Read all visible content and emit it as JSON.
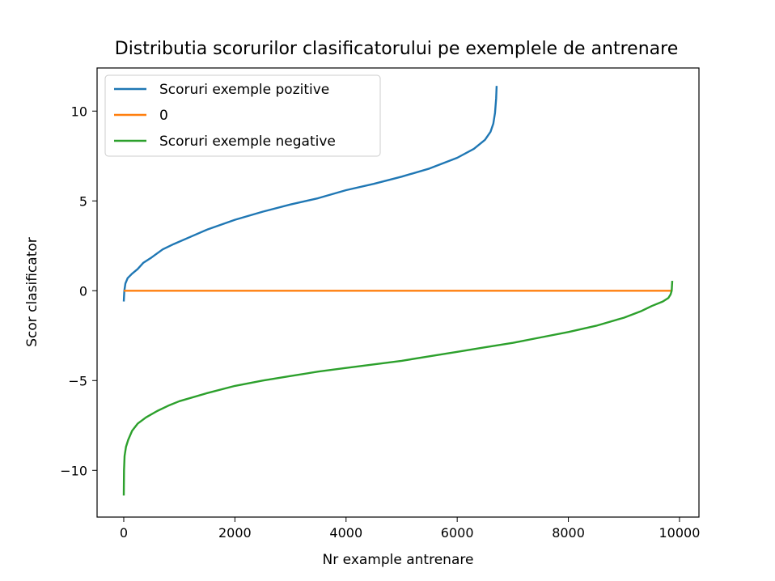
{
  "chart_data": {
    "type": "line",
    "title": "Distributia scorurilor clasificatorului pe exemplele de antrenare",
    "xlabel": "Nr example antrenare",
    "ylabel": "Scor clasificator",
    "xlim": [
      -480,
      10350
    ],
    "ylim": [
      -12.6,
      12.4
    ],
    "xticks": [
      0,
      2000,
      4000,
      6000,
      8000,
      10000
    ],
    "xtick_labels": [
      "0",
      "2000",
      "4000",
      "6000",
      "8000",
      "10000"
    ],
    "yticks": [
      -10,
      -5,
      0,
      5,
      10
    ],
    "ytick_labels": [
      "−10",
      "−5",
      "0",
      "5",
      "10"
    ],
    "grid": false,
    "legend_position": "upper-left",
    "series": [
      {
        "name": "Scoruri exemple pozitive",
        "color": "#1f77b4",
        "x": [
          0,
          10,
          30,
          70,
          150,
          250,
          350,
          500,
          700,
          900,
          1200,
          1500,
          2000,
          2500,
          3000,
          3500,
          4000,
          4500,
          5000,
          5500,
          6000,
          6300,
          6500,
          6600,
          6650,
          6680,
          6700,
          6710
        ],
        "y": [
          -0.6,
          0.0,
          0.4,
          0.7,
          0.95,
          1.2,
          1.55,
          1.85,
          2.3,
          2.6,
          3.0,
          3.4,
          3.95,
          4.4,
          4.8,
          5.15,
          5.6,
          5.95,
          6.35,
          6.8,
          7.4,
          7.9,
          8.4,
          8.85,
          9.3,
          9.9,
          10.7,
          11.4
        ]
      },
      {
        "name": "0",
        "color": "#ff7f0e",
        "x": [
          0,
          9870
        ],
        "y": [
          0,
          0
        ]
      },
      {
        "name": "Scoruri exemple negative",
        "color": "#2ca02c",
        "x": [
          0,
          5,
          15,
          40,
          80,
          150,
          250,
          400,
          600,
          800,
          1000,
          1500,
          2000,
          2500,
          3000,
          3500,
          4000,
          4500,
          5000,
          5500,
          6000,
          6500,
          7000,
          7500,
          8000,
          8500,
          9000,
          9300,
          9500,
          9700,
          9800,
          9840,
          9860,
          9870
        ],
        "y": [
          -11.4,
          -10.0,
          -9.2,
          -8.7,
          -8.3,
          -7.8,
          -7.4,
          -7.05,
          -6.7,
          -6.4,
          -6.15,
          -5.7,
          -5.3,
          -5.0,
          -4.75,
          -4.5,
          -4.3,
          -4.1,
          -3.9,
          -3.65,
          -3.4,
          -3.15,
          -2.9,
          -2.6,
          -2.3,
          -1.95,
          -1.5,
          -1.15,
          -0.85,
          -0.6,
          -0.4,
          -0.2,
          0.0,
          0.55
        ]
      }
    ]
  }
}
